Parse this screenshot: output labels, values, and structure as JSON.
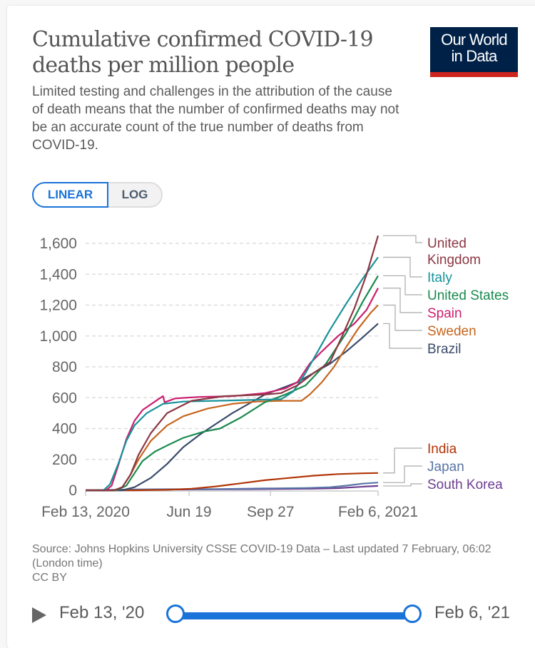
{
  "header": {
    "title": "Cumulative confirmed COVID-19 deaths per million people",
    "subtitle": "Limited testing and challenges in the attribution of the cause of death means that the number of confirmed deaths may not be an accurate count of the true number of deaths from COVID-19.",
    "logo_line1": "Our World",
    "logo_line2": "in Data"
  },
  "scale_toggle": {
    "linear_label": "LINEAR",
    "log_label": "LOG",
    "selected": "LINEAR"
  },
  "colors": {
    "accent": "#1a73d9",
    "logo_bg": "#002147",
    "logo_bar": "#ce261e"
  },
  "chart_data": {
    "type": "line",
    "title": "Cumulative confirmed COVID-19 deaths per million people",
    "xlabel": "",
    "ylabel": "",
    "x_unit": "days since Feb 13, 2020",
    "x_range": [
      0,
      359
    ],
    "ylim": [
      0,
      1600
    ],
    "y_ticks": [
      0,
      200,
      400,
      600,
      800,
      1000,
      1200,
      1400,
      1600
    ],
    "y_tick_labels": [
      "0",
      "200",
      "400",
      "600",
      "800",
      "1,000",
      "1,200",
      "1,400",
      "1,600"
    ],
    "x_ticks": [
      0,
      127,
      227,
      359
    ],
    "x_tick_labels": [
      "Feb 13, 2020",
      "Jun 19",
      "Sep 27",
      "Feb 6, 2021"
    ],
    "grid": "horizontal dashed",
    "legend": "right, line-end labels",
    "series": [
      {
        "name": "United Kingdom",
        "label_lines": [
          "United",
          "Kingdom"
        ],
        "color": "#8c3742",
        "x": [
          0,
          35,
          45,
          55,
          65,
          80,
          100,
          130,
          170,
          220,
          240,
          260,
          280,
          300,
          315,
          330,
          345,
          359
        ],
        "y": [
          0,
          0,
          20,
          100,
          230,
          370,
          500,
          580,
          610,
          620,
          630,
          680,
          760,
          830,
          1000,
          1180,
          1400,
          1650
        ]
      },
      {
        "name": "Italy",
        "label_lines": [
          "Italy"
        ],
        "color": "#18929a",
        "x": [
          0,
          22,
          30,
          40,
          50,
          60,
          75,
          95,
          120,
          160,
          200,
          240,
          255,
          270,
          285,
          300,
          320,
          340,
          359
        ],
        "y": [
          0,
          0,
          40,
          170,
          320,
          420,
          500,
          560,
          575,
          580,
          585,
          590,
          640,
          760,
          900,
          1040,
          1210,
          1370,
          1510
        ]
      },
      {
        "name": "United States",
        "label_lines": [
          "United States"
        ],
        "color": "#1a8a4e",
        "x": [
          0,
          38,
          50,
          60,
          70,
          85,
          100,
          120,
          145,
          165,
          190,
          220,
          245,
          270,
          295,
          320,
          340,
          359
        ],
        "y": [
          0,
          0,
          30,
          110,
          190,
          250,
          290,
          340,
          380,
          400,
          470,
          570,
          620,
          680,
          820,
          1020,
          1220,
          1390
        ]
      },
      {
        "name": "Spain",
        "label_lines": [
          "Spain"
        ],
        "color": "#cc1f6f",
        "x": [
          0,
          25,
          32,
          40,
          50,
          60,
          70,
          85,
          95,
          97,
          110,
          140,
          180,
          220,
          245,
          260,
          275,
          290,
          310,
          330,
          345,
          359
        ],
        "y": [
          0,
          0,
          30,
          160,
          330,
          450,
          520,
          575,
          610,
          570,
          595,
          605,
          610,
          630,
          660,
          700,
          820,
          900,
          1000,
          1080,
          1170,
          1310
        ]
      },
      {
        "name": "Sweden",
        "label_lines": [
          "Sweden"
        ],
        "color": "#c6651e",
        "x": [
          0,
          35,
          45,
          55,
          65,
          80,
          100,
          120,
          150,
          180,
          210,
          240,
          265,
          275,
          290,
          305,
          320,
          335,
          350,
          359
        ],
        "y": [
          0,
          0,
          20,
          100,
          200,
          320,
          420,
          480,
          530,
          560,
          575,
          580,
          580,
          620,
          700,
          800,
          930,
          1050,
          1150,
          1200
        ]
      },
      {
        "name": "Brazil",
        "label_lines": [
          "Brazil"
        ],
        "color": "#394b69",
        "x": [
          0,
          45,
          60,
          80,
          100,
          120,
          140,
          160,
          180,
          200,
          220,
          240,
          260,
          280,
          300,
          320,
          340,
          359
        ],
        "y": [
          0,
          0,
          20,
          80,
          170,
          280,
          360,
          430,
          500,
          560,
          620,
          660,
          700,
          760,
          820,
          900,
          990,
          1080
        ]
      },
      {
        "name": "India",
        "label_lines": [
          "India"
        ],
        "color": "#b13507",
        "x": [
          0,
          60,
          100,
          130,
          160,
          190,
          220,
          250,
          280,
          310,
          340,
          359
        ],
        "y": [
          0,
          0,
          3,
          10,
          25,
          45,
          65,
          80,
          95,
          105,
          110,
          112
        ]
      },
      {
        "name": "Japan",
        "label_lines": [
          "Japan"
        ],
        "color": "#5a75a7",
        "x": [
          0,
          60,
          100,
          160,
          220,
          270,
          300,
          320,
          340,
          359
        ],
        "y": [
          0,
          5,
          7,
          8,
          12,
          15,
          20,
          30,
          43,
          50
        ]
      },
      {
        "name": "South Korea",
        "label_lines": [
          "South Korea"
        ],
        "color": "#6d3e91",
        "x": [
          0,
          30,
          60,
          120,
          200,
          280,
          310,
          330,
          345,
          359
        ],
        "y": [
          0,
          1,
          4,
          5,
          7,
          10,
          14,
          20,
          25,
          28
        ]
      }
    ]
  },
  "footer": {
    "source": "Source: Johns Hopkins University CSSE COVID-19 Data – Last updated 7 February, 06:02 (London time)",
    "license": "CC BY"
  },
  "timeline": {
    "start_label": "Feb 13, '20",
    "end_label": "Feb 6, '21",
    "start_fraction": 0,
    "end_fraction": 1
  }
}
